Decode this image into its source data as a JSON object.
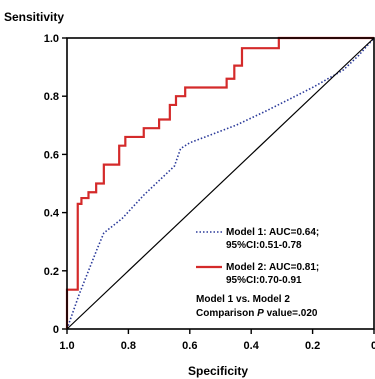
{
  "chart_data": {
    "type": "line",
    "title": "",
    "xlabel": "Specificity",
    "ylabel": "Sensitivity",
    "xlim": [
      1.0,
      0.0
    ],
    "ylim": [
      0.0,
      1.0
    ],
    "x_reversed": true,
    "grid": false,
    "x_ticks": [
      1.0,
      0.8,
      0.6,
      0.4,
      0.2,
      0.0
    ],
    "x_tick_labels": [
      "1.0",
      "0.8",
      "0.6",
      "0.4",
      "0.2",
      "0"
    ],
    "y_ticks": [
      0.0,
      0.2,
      0.4,
      0.6,
      0.8,
      1.0
    ],
    "y_tick_labels": [
      "0",
      "0.2",
      "0.4",
      "0.6",
      "0.8",
      "1.0"
    ],
    "series": [
      {
        "name": "Model 1: AUC=0.64; 95%CI:0.51-0.78",
        "color": "#2b3a9a",
        "style": "dotted",
        "points": [
          [
            1.0,
            0.0
          ],
          [
            0.98,
            0.06
          ],
          [
            0.96,
            0.12
          ],
          [
            0.93,
            0.2
          ],
          [
            0.9,
            0.28
          ],
          [
            0.88,
            0.33
          ],
          [
            0.82,
            0.38
          ],
          [
            0.75,
            0.46
          ],
          [
            0.7,
            0.51
          ],
          [
            0.65,
            0.56
          ],
          [
            0.63,
            0.62
          ],
          [
            0.6,
            0.64
          ],
          [
            0.55,
            0.66
          ],
          [
            0.45,
            0.7
          ],
          [
            0.35,
            0.75
          ],
          [
            0.2,
            0.83
          ],
          [
            0.1,
            0.89
          ],
          [
            0.05,
            0.94
          ],
          [
            0.0,
            1.0
          ]
        ]
      },
      {
        "name": "Model 2: AUC=0.81; 95%CI:0.70-0.91",
        "color": "#d42a2a",
        "style": "solid",
        "steps": [
          [
            1.0,
            0.0
          ],
          [
            1.0,
            0.135
          ],
          [
            0.965,
            0.135
          ],
          [
            0.965,
            0.43
          ],
          [
            0.953,
            0.43
          ],
          [
            0.953,
            0.45
          ],
          [
            0.93,
            0.45
          ],
          [
            0.93,
            0.47
          ],
          [
            0.905,
            0.47
          ],
          [
            0.905,
            0.5
          ],
          [
            0.88,
            0.5
          ],
          [
            0.88,
            0.565
          ],
          [
            0.83,
            0.565
          ],
          [
            0.83,
            0.63
          ],
          [
            0.81,
            0.63
          ],
          [
            0.81,
            0.66
          ],
          [
            0.75,
            0.66
          ],
          [
            0.75,
            0.69
          ],
          [
            0.7,
            0.69
          ],
          [
            0.7,
            0.72
          ],
          [
            0.665,
            0.72
          ],
          [
            0.665,
            0.77
          ],
          [
            0.645,
            0.77
          ],
          [
            0.645,
            0.8
          ],
          [
            0.615,
            0.8
          ],
          [
            0.615,
            0.83
          ],
          [
            0.48,
            0.83
          ],
          [
            0.48,
            0.86
          ],
          [
            0.455,
            0.86
          ],
          [
            0.455,
            0.905
          ],
          [
            0.43,
            0.905
          ],
          [
            0.43,
            0.965
          ],
          [
            0.31,
            0.965
          ],
          [
            0.31,
            1.0
          ],
          [
            0.0,
            1.0
          ]
        ]
      },
      {
        "name": "",
        "color": "#000000",
        "style": "reference",
        "points": [
          [
            1.0,
            0.0
          ],
          [
            0.0,
            1.0
          ]
        ]
      }
    ],
    "legend": [
      {
        "line1": "Model 1: AUC=0.64;",
        "line2": "95%CI:0.51-0.78",
        "color": "#2b3a9a",
        "style": "dotted"
      },
      {
        "line1": "Model 2: AUC=0.81;",
        "line2": "95%CI:0.70-0.91",
        "color": "#d42a2a",
        "style": "solid"
      }
    ],
    "legend_placement": "bottom-right",
    "annotation": {
      "line1": "Model 1 vs. Model 2",
      "line2_prefix": "Comparison ",
      "line2_italic": "P",
      "line2_suffix": " value=.020"
    }
  }
}
